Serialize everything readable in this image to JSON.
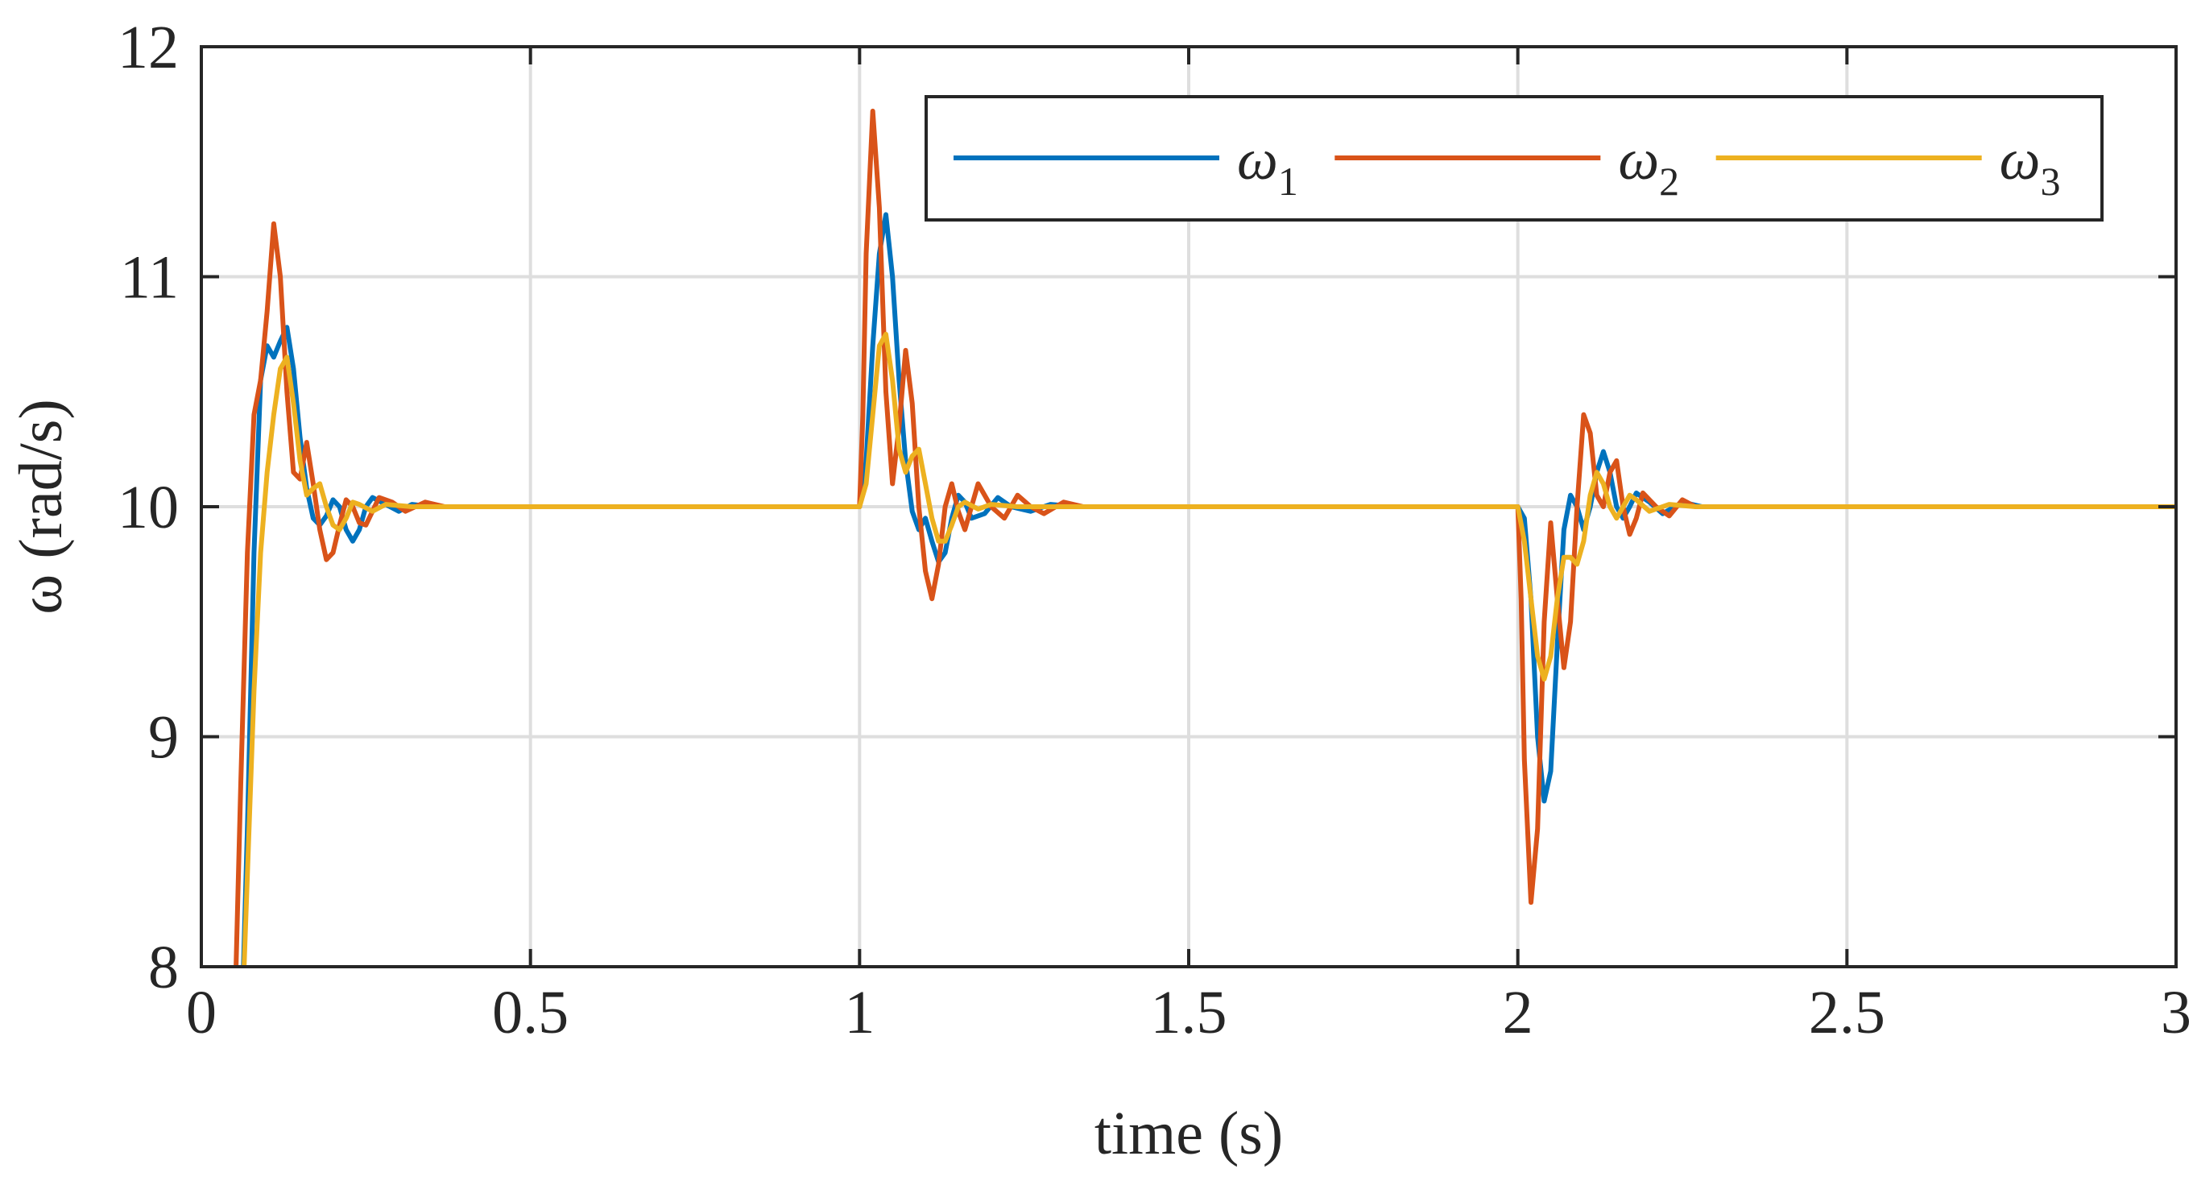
{
  "chart_data": {
    "type": "line",
    "title": "",
    "xlabel": "time (s)",
    "ylabel": "ω (rad/s)",
    "xlim": [
      0,
      3
    ],
    "ylim": [
      8,
      12
    ],
    "xticks": [
      0,
      0.5,
      1,
      1.5,
      2,
      2.5,
      3
    ],
    "xtick_labels": [
      "0",
      "0.5",
      "1",
      "1.5",
      "2",
      "2.5",
      "3"
    ],
    "yticks": [
      8,
      9,
      10,
      11,
      12
    ],
    "ytick_labels": [
      "8",
      "9",
      "10",
      "11",
      "12"
    ],
    "grid": true,
    "legend_position": "top-right",
    "legend_orientation": "horizontal",
    "series": [
      {
        "name": "ω1",
        "symbol": "ω",
        "subscript": "1",
        "color": "#0072BD",
        "points": [
          [
            0.06,
            7.6
          ],
          [
            0.07,
            8.6
          ],
          [
            0.08,
            9.8
          ],
          [
            0.09,
            10.55
          ],
          [
            0.1,
            10.7
          ],
          [
            0.11,
            10.65
          ],
          [
            0.12,
            10.72
          ],
          [
            0.13,
            10.78
          ],
          [
            0.14,
            10.6
          ],
          [
            0.15,
            10.3
          ],
          [
            0.16,
            10.08
          ],
          [
            0.17,
            9.95
          ],
          [
            0.18,
            9.92
          ],
          [
            0.19,
            9.96
          ],
          [
            0.2,
            10.03
          ],
          [
            0.21,
            10.0
          ],
          [
            0.22,
            9.9
          ],
          [
            0.23,
            9.85
          ],
          [
            0.24,
            9.9
          ],
          [
            0.25,
            10.0
          ],
          [
            0.26,
            10.04
          ],
          [
            0.28,
            10.01
          ],
          [
            0.3,
            9.98
          ],
          [
            0.32,
            10.01
          ],
          [
            0.35,
            10.0
          ],
          [
            0.4,
            10.0
          ],
          [
            0.45,
            10.0
          ],
          [
            1.0,
            10.0
          ],
          [
            1.0,
            10.0
          ],
          [
            1.01,
            10.2
          ],
          [
            1.02,
            10.7
          ],
          [
            1.03,
            11.1
          ],
          [
            1.04,
            11.27
          ],
          [
            1.05,
            11.0
          ],
          [
            1.06,
            10.55
          ],
          [
            1.07,
            10.2
          ],
          [
            1.08,
            9.98
          ],
          [
            1.09,
            9.9
          ],
          [
            1.1,
            9.95
          ],
          [
            1.11,
            9.85
          ],
          [
            1.12,
            9.76
          ],
          [
            1.13,
            9.8
          ],
          [
            1.14,
            9.95
          ],
          [
            1.15,
            10.05
          ],
          [
            1.16,
            10.02
          ],
          [
            1.17,
            9.95
          ],
          [
            1.19,
            9.97
          ],
          [
            1.21,
            10.04
          ],
          [
            1.23,
            10.0
          ],
          [
            1.26,
            9.98
          ],
          [
            1.29,
            10.01
          ],
          [
            1.33,
            10.0
          ],
          [
            1.4,
            10.0
          ],
          [
            2.0,
            10.0
          ],
          [
            2.0,
            10.0
          ],
          [
            2.01,
            9.95
          ],
          [
            2.02,
            9.6
          ],
          [
            2.03,
            9.0
          ],
          [
            2.04,
            8.72
          ],
          [
            2.05,
            8.85
          ],
          [
            2.06,
            9.4
          ],
          [
            2.07,
            9.9
          ],
          [
            2.08,
            10.05
          ],
          [
            2.09,
            10.0
          ],
          [
            2.1,
            9.9
          ],
          [
            2.11,
            10.0
          ],
          [
            2.12,
            10.15
          ],
          [
            2.13,
            10.24
          ],
          [
            2.14,
            10.15
          ],
          [
            2.15,
            10.0
          ],
          [
            2.16,
            9.95
          ],
          [
            2.17,
            10.0
          ],
          [
            2.18,
            10.06
          ],
          [
            2.2,
            10.02
          ],
          [
            2.22,
            9.97
          ],
          [
            2.25,
            10.02
          ],
          [
            2.28,
            10.0
          ],
          [
            2.32,
            10.0
          ],
          [
            2.4,
            10.0
          ],
          [
            3.0,
            10.0
          ]
        ]
      },
      {
        "name": "ω2",
        "symbol": "ω",
        "subscript": "2",
        "color": "#D95319",
        "points": [
          [
            0.05,
            7.7
          ],
          [
            0.06,
            8.8
          ],
          [
            0.07,
            9.8
          ],
          [
            0.08,
            10.4
          ],
          [
            0.09,
            10.55
          ],
          [
            0.1,
            10.85
          ],
          [
            0.11,
            11.23
          ],
          [
            0.12,
            11.0
          ],
          [
            0.13,
            10.5
          ],
          [
            0.14,
            10.15
          ],
          [
            0.15,
            10.12
          ],
          [
            0.16,
            10.28
          ],
          [
            0.17,
            10.1
          ],
          [
            0.18,
            9.9
          ],
          [
            0.19,
            9.77
          ],
          [
            0.2,
            9.8
          ],
          [
            0.21,
            9.92
          ],
          [
            0.22,
            10.03
          ],
          [
            0.23,
            10.0
          ],
          [
            0.24,
            9.93
          ],
          [
            0.25,
            9.92
          ],
          [
            0.26,
            9.98
          ],
          [
            0.27,
            10.04
          ],
          [
            0.29,
            10.02
          ],
          [
            0.31,
            9.98
          ],
          [
            0.34,
            10.02
          ],
          [
            0.37,
            10.0
          ],
          [
            0.4,
            10.0
          ],
          [
            1.0,
            10.0
          ],
          [
            1.0,
            10.0
          ],
          [
            1.005,
            10.4
          ],
          [
            1.01,
            11.1
          ],
          [
            1.02,
            11.72
          ],
          [
            1.03,
            11.3
          ],
          [
            1.04,
            10.5
          ],
          [
            1.05,
            10.1
          ],
          [
            1.06,
            10.35
          ],
          [
            1.07,
            10.68
          ],
          [
            1.08,
            10.45
          ],
          [
            1.09,
            10.0
          ],
          [
            1.1,
            9.72
          ],
          [
            1.11,
            9.6
          ],
          [
            1.12,
            9.75
          ],
          [
            1.13,
            10.0
          ],
          [
            1.14,
            10.1
          ],
          [
            1.15,
            9.98
          ],
          [
            1.16,
            9.9
          ],
          [
            1.17,
            10.0
          ],
          [
            1.18,
            10.1
          ],
          [
            1.2,
            10.0
          ],
          [
            1.22,
            9.95
          ],
          [
            1.24,
            10.05
          ],
          [
            1.26,
            10.0
          ],
          [
            1.28,
            9.97
          ],
          [
            1.31,
            10.02
          ],
          [
            1.34,
            10.0
          ],
          [
            1.4,
            10.0
          ],
          [
            2.0,
            10.0
          ],
          [
            2.0,
            10.0
          ],
          [
            2.005,
            9.6
          ],
          [
            2.01,
            8.9
          ],
          [
            2.02,
            8.28
          ],
          [
            2.03,
            8.6
          ],
          [
            2.04,
            9.5
          ],
          [
            2.05,
            9.93
          ],
          [
            2.06,
            9.6
          ],
          [
            2.07,
            9.3
          ],
          [
            2.08,
            9.5
          ],
          [
            2.09,
            10.0
          ],
          [
            2.1,
            10.4
          ],
          [
            2.11,
            10.32
          ],
          [
            2.12,
            10.05
          ],
          [
            2.13,
            10.0
          ],
          [
            2.14,
            10.15
          ],
          [
            2.15,
            10.2
          ],
          [
            2.16,
            10.0
          ],
          [
            2.17,
            9.88
          ],
          [
            2.18,
            9.95
          ],
          [
            2.19,
            10.06
          ],
          [
            2.21,
            10.0
          ],
          [
            2.23,
            9.96
          ],
          [
            2.25,
            10.03
          ],
          [
            2.27,
            10.0
          ],
          [
            2.3,
            10.0
          ],
          [
            2.4,
            10.0
          ],
          [
            3.0,
            10.0
          ]
        ]
      },
      {
        "name": "ω3",
        "symbol": "ω",
        "subscript": "3",
        "color": "#EDB120",
        "points": [
          [
            0.06,
            7.6
          ],
          [
            0.07,
            8.4
          ],
          [
            0.08,
            9.2
          ],
          [
            0.09,
            9.8
          ],
          [
            0.1,
            10.15
          ],
          [
            0.11,
            10.4
          ],
          [
            0.12,
            10.6
          ],
          [
            0.13,
            10.65
          ],
          [
            0.14,
            10.45
          ],
          [
            0.15,
            10.2
          ],
          [
            0.16,
            10.05
          ],
          [
            0.17,
            10.08
          ],
          [
            0.18,
            10.1
          ],
          [
            0.19,
            10.0
          ],
          [
            0.2,
            9.92
          ],
          [
            0.21,
            9.9
          ],
          [
            0.22,
            9.95
          ],
          [
            0.23,
            10.02
          ],
          [
            0.24,
            10.01
          ],
          [
            0.26,
            9.98
          ],
          [
            0.28,
            10.01
          ],
          [
            0.32,
            10.0
          ],
          [
            0.4,
            10.0
          ],
          [
            1.0,
            10.0
          ],
          [
            1.0,
            10.0
          ],
          [
            1.01,
            10.1
          ],
          [
            1.02,
            10.4
          ],
          [
            1.03,
            10.7
          ],
          [
            1.04,
            10.75
          ],
          [
            1.05,
            10.55
          ],
          [
            1.06,
            10.25
          ],
          [
            1.07,
            10.15
          ],
          [
            1.08,
            10.22
          ],
          [
            1.09,
            10.25
          ],
          [
            1.1,
            10.1
          ],
          [
            1.11,
            9.95
          ],
          [
            1.12,
            9.85
          ],
          [
            1.13,
            9.85
          ],
          [
            1.14,
            9.92
          ],
          [
            1.15,
            10.0
          ],
          [
            1.16,
            10.02
          ],
          [
            1.18,
            9.99
          ],
          [
            1.2,
            10.01
          ],
          [
            1.24,
            10.0
          ],
          [
            1.3,
            10.0
          ],
          [
            2.0,
            10.0
          ],
          [
            2.0,
            10.0
          ],
          [
            2.01,
            9.85
          ],
          [
            2.02,
            9.6
          ],
          [
            2.03,
            9.35
          ],
          [
            2.04,
            9.25
          ],
          [
            2.05,
            9.35
          ],
          [
            2.06,
            9.6
          ],
          [
            2.07,
            9.78
          ],
          [
            2.08,
            9.78
          ],
          [
            2.09,
            9.75
          ],
          [
            2.1,
            9.85
          ],
          [
            2.11,
            10.05
          ],
          [
            2.12,
            10.15
          ],
          [
            2.13,
            10.1
          ],
          [
            2.14,
            10.0
          ],
          [
            2.15,
            9.95
          ],
          [
            2.16,
            10.0
          ],
          [
            2.17,
            10.05
          ],
          [
            2.18,
            10.03
          ],
          [
            2.2,
            9.98
          ],
          [
            2.23,
            10.01
          ],
          [
            2.27,
            10.0
          ],
          [
            2.35,
            10.0
          ],
          [
            3.0,
            10.0
          ]
        ]
      }
    ]
  }
}
